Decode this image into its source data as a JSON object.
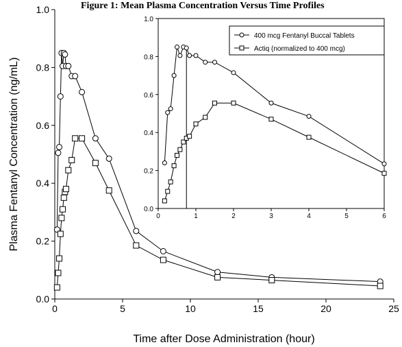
{
  "figure_title": "Figure 1: Mean Plasma Concentration Versus Time Profiles",
  "chart_data": [
    {
      "type": "line",
      "title": "",
      "xlabel": "Time after Dose Administration (hour)",
      "ylabel": "Plasma Fentanyl Concentration (ng/mL)",
      "xlim": [
        0,
        25
      ],
      "ylim": [
        0,
        1.0
      ],
      "xticks": [
        "0",
        "5",
        "10",
        "15",
        "20",
        "25"
      ],
      "yticks": [
        "0.0",
        "0.2",
        "0.4",
        "0.6",
        "0.8",
        "1.0"
      ],
      "grid": false,
      "series": [
        {
          "name": "400 mcg Fentanyl Buccal Tablets",
          "marker": "circle",
          "color": "#000000",
          "x": [
            0.17,
            0.25,
            0.33,
            0.42,
            0.5,
            0.58,
            0.67,
            0.75,
            0.83,
            1.0,
            1.25,
            1.5,
            2.0,
            3.0,
            4.0,
            6.0,
            8.0,
            12.0,
            16.0,
            24.0
          ],
          "y": [
            0.24,
            0.505,
            0.525,
            0.7,
            0.85,
            0.805,
            0.85,
            0.845,
            0.805,
            0.805,
            0.77,
            0.77,
            0.715,
            0.555,
            0.485,
            0.235,
            0.165,
            0.093,
            0.075,
            0.06
          ]
        },
        {
          "name": "Actiq (normalized to 400 mcg)",
          "marker": "square",
          "color": "#000000",
          "x": [
            0.17,
            0.25,
            0.33,
            0.42,
            0.5,
            0.58,
            0.67,
            0.75,
            0.83,
            1.0,
            1.25,
            1.5,
            2.0,
            3.0,
            4.0,
            6.0,
            8.0,
            12.0,
            16.0,
            24.0
          ],
          "y": [
            0.04,
            0.09,
            0.14,
            0.225,
            0.28,
            0.31,
            0.35,
            0.37,
            0.38,
            0.445,
            0.48,
            0.555,
            0.555,
            0.47,
            0.375,
            0.185,
            0.135,
            0.075,
            0.065,
            0.045
          ]
        }
      ]
    },
    {
      "type": "line",
      "title": "",
      "xlabel": "",
      "ylabel": "",
      "xlim": [
        0,
        6
      ],
      "ylim": [
        0,
        1.0
      ],
      "xticks": [
        "0",
        "1",
        "2",
        "3",
        "4",
        "5",
        "6"
      ],
      "yticks": [
        "0.0",
        "0.2",
        "0.4",
        "0.6",
        "0.8",
        "1.0"
      ],
      "grid": false,
      "legend": "top-right",
      "reference_line_x": 0.75,
      "series": [
        {
          "name": "400 mcg Fentanyl Buccal Tablets",
          "marker": "circle",
          "color": "#000000",
          "x": [
            0.17,
            0.25,
            0.33,
            0.42,
            0.5,
            0.58,
            0.67,
            0.75,
            0.83,
            1.0,
            1.25,
            1.5,
            2.0,
            3.0,
            4.0,
            6.0
          ],
          "y": [
            0.24,
            0.505,
            0.525,
            0.7,
            0.85,
            0.805,
            0.85,
            0.845,
            0.805,
            0.805,
            0.77,
            0.77,
            0.715,
            0.555,
            0.485,
            0.235
          ]
        },
        {
          "name": "Actiq (normalized to 400 mcg)",
          "marker": "square",
          "color": "#000000",
          "x": [
            0.17,
            0.25,
            0.33,
            0.42,
            0.5,
            0.58,
            0.67,
            0.75,
            0.83,
            1.0,
            1.25,
            1.5,
            2.0,
            3.0,
            4.0,
            6.0
          ],
          "y": [
            0.04,
            0.09,
            0.14,
            0.225,
            0.28,
            0.31,
            0.35,
            0.37,
            0.38,
            0.445,
            0.48,
            0.555,
            0.555,
            0.47,
            0.375,
            0.185
          ]
        }
      ]
    }
  ]
}
